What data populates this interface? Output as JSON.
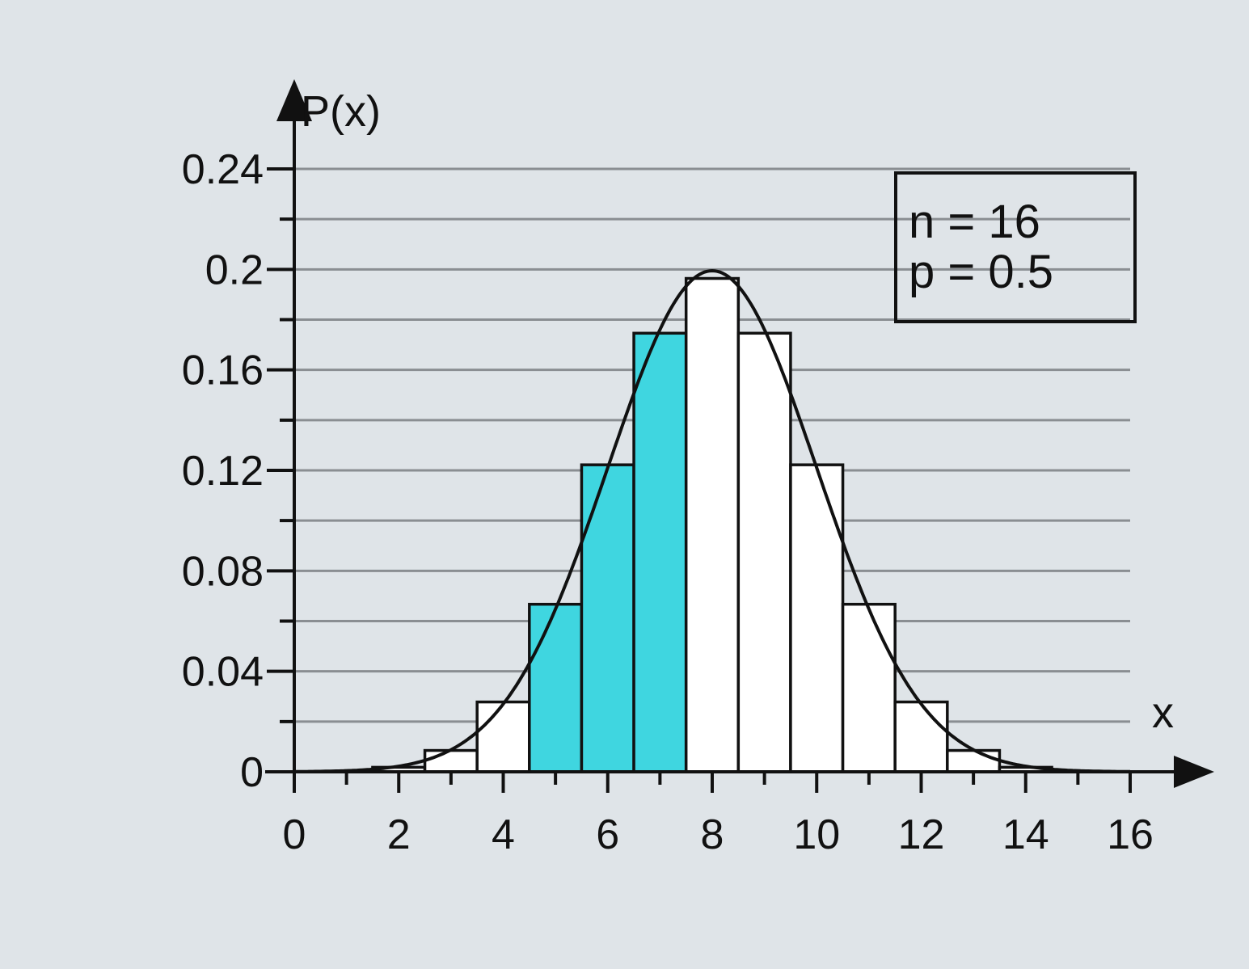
{
  "chart_data": {
    "type": "bar",
    "ylabel": "P(x)",
    "xlabel": "x",
    "xlim": [
      0,
      16
    ],
    "ylim": [
      0,
      0.24
    ],
    "x_ticks": [
      0,
      2,
      4,
      6,
      8,
      10,
      12,
      14,
      16
    ],
    "y_ticks": [
      "0",
      "0.04",
      "0.08",
      "0.12",
      "0.16",
      "0.2",
      "0.24"
    ],
    "y_tick_values": [
      0,
      0.04,
      0.08,
      0.12,
      0.16,
      0.2,
      0.24
    ],
    "grid": true,
    "legend_placement": "top-right",
    "annotation": {
      "line1": "n = 16",
      "line2": "p = 0.5"
    },
    "x": [
      0,
      1,
      2,
      3,
      4,
      5,
      6,
      7,
      8,
      9,
      10,
      11,
      12,
      13,
      14,
      15,
      16
    ],
    "values": [
      0.0,
      0.0002,
      0.0018,
      0.0085,
      0.0278,
      0.0667,
      0.1222,
      0.1746,
      0.1964,
      0.1746,
      0.1222,
      0.0667,
      0.0278,
      0.0085,
      0.0018,
      0.0002,
      0.0
    ],
    "highlighted_x": [
      5,
      6,
      7
    ],
    "normal_curve": {
      "mean": 8,
      "sd": 2
    },
    "colors": {
      "highlight": "#3fd6e0",
      "bar": "#ffffff",
      "stroke": "#111111",
      "grid": "#8a8e92",
      "background": "#dfe4e8"
    }
  }
}
